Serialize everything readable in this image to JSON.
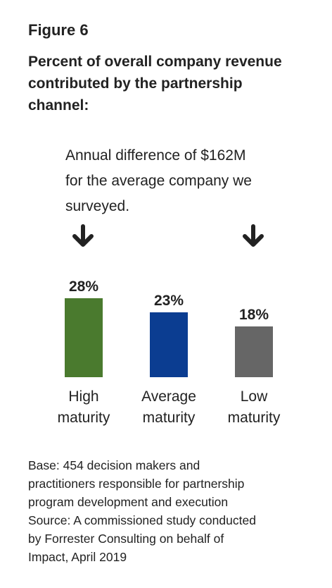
{
  "figure_label": "Figure 6",
  "title_lines": [
    "Percent of overall company revenue",
    "contributed by the partnership",
    "channel:"
  ],
  "annotation_lines": [
    "Annual difference of $162M",
    "for the average company we",
    "surveyed."
  ],
  "annotation_icons": [
    "arrow-down-icon",
    "arrow-down-icon"
  ],
  "footnote": {
    "base_lines": [
      "Base: 454 decision makers and",
      "practitioners responsible for partnership",
      "program development and execution"
    ],
    "source_lines": [
      "Source: A commissioned study conducted",
      "by Forrester Consulting on behalf of",
      "Impact, April 2019"
    ]
  },
  "chart_data": {
    "type": "bar",
    "categories": [
      [
        "High",
        "maturity"
      ],
      [
        "Average",
        "maturity"
      ],
      [
        "Low",
        "maturity"
      ]
    ],
    "values": [
      28,
      23,
      18
    ],
    "data_labels": [
      "28%",
      "23%",
      "18%"
    ],
    "colors": [
      "#4a7a2e",
      "#0b3d91",
      "#666666"
    ],
    "ylim": [
      0,
      28
    ],
    "grid": false
  }
}
